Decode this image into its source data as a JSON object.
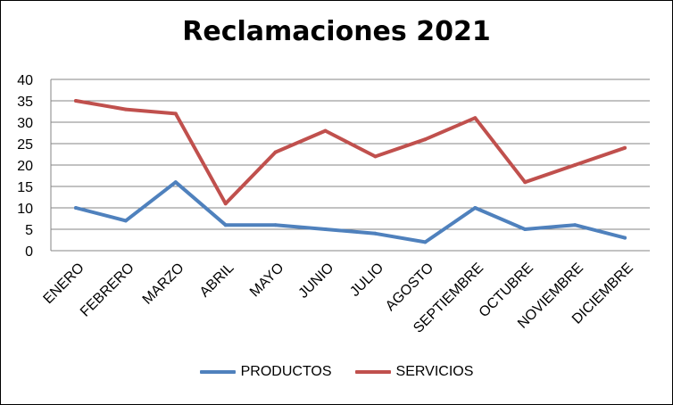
{
  "chart_data": {
    "type": "line",
    "title": "Reclamaciones 2021",
    "xlabel": "",
    "ylabel": "",
    "ylim": [
      0,
      40
    ],
    "yticks": [
      0,
      5,
      10,
      15,
      20,
      25,
      30,
      35,
      40
    ],
    "grid": true,
    "legend_position": "bottom",
    "categories": [
      "ENERO",
      "FEBRERO",
      "MARZO",
      "ABRIL",
      "MAYO",
      "JUNIO",
      "JULIO",
      "AGOSTO",
      "SEPTIEMBRE",
      "OCTUBRE",
      "NOVIEMBRE",
      "DICIEMBRE"
    ],
    "series": [
      {
        "name": "PRODUCTOS",
        "color": "#4F81BD",
        "values": [
          10,
          7,
          16,
          6,
          6,
          5,
          4,
          2,
          10,
          5,
          6,
          3
        ]
      },
      {
        "name": "SERVICIOS",
        "color": "#C0504D",
        "values": [
          35,
          33,
          32,
          11,
          23,
          28,
          22,
          26,
          31,
          16,
          20,
          24
        ]
      }
    ]
  }
}
